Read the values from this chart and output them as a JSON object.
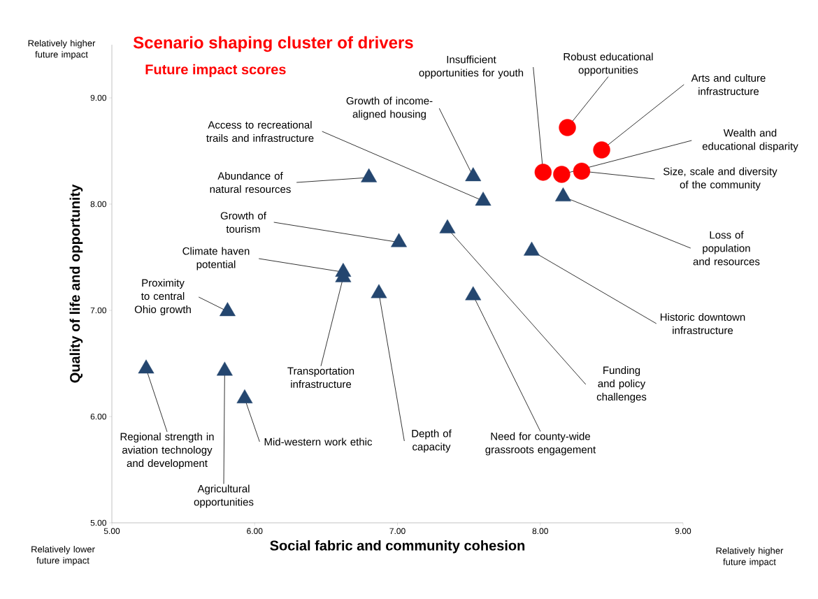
{
  "chart_data": {
    "type": "scatter",
    "title": "Scenario shaping cluster of drivers",
    "subtitle": "Future impact scores",
    "xlabel": "Social fabric and community cohesion",
    "ylabel": "Quality of life and opportunity",
    "xlim": [
      5,
      9
    ],
    "ylim": [
      5,
      9.5
    ],
    "xticks": [
      {
        "value": 5,
        "label": "5.00"
      },
      {
        "value": 6,
        "label": "6.00"
      },
      {
        "value": 7,
        "label": "7.00"
      },
      {
        "value": 8,
        "label": "8.00"
      },
      {
        "value": 9,
        "label": "9.00"
      }
    ],
    "yticks": [
      {
        "value": 5,
        "label": "5.00"
      },
      {
        "value": 6,
        "label": "6.00"
      },
      {
        "value": 7,
        "label": "7.00"
      },
      {
        "value": 8,
        "label": "8.00"
      },
      {
        "value": 9,
        "label": "9.00"
      }
    ],
    "series": [
      {
        "color": "#ff0000",
        "marker": "circle",
        "x": [
          8.19,
          8.43,
          8.02,
          8.15,
          8.29
        ],
        "values": [
          8.72,
          8.51,
          8.3,
          8.28,
          8.31
        ]
      },
      {
        "color": "#24466f",
        "marker": "triangle",
        "x": [
          7.53,
          7.6,
          6.8,
          8.16,
          7.01,
          7.35,
          7.94,
          6.62,
          6.62,
          6.87,
          7.53,
          5.81,
          5.24,
          5.79,
          5.93
        ],
        "values": [
          8.26,
          8.03,
          8.25,
          8.07,
          7.64,
          7.77,
          7.56,
          7.36,
          7.31,
          7.16,
          7.14,
          6.99,
          6.45,
          6.43,
          6.17
        ]
      }
    ],
    "annotations": [
      {
        "text": "Robust educational opportunities",
        "x": 8.19,
        "y": 8.72
      },
      {
        "text": "Arts and culture infrastructure",
        "x": 8.43,
        "y": 8.51
      },
      {
        "text": "Insufficient opportunities for youth",
        "x": 8.02,
        "y": 8.3
      },
      {
        "text": "Wealth and educational disparity",
        "x": 8.15,
        "y": 8.28
      },
      {
        "text": "Size, scale and diversity of the community",
        "x": 8.29,
        "y": 8.31
      },
      {
        "text": "Growth of income-aligned housing",
        "x": 7.53,
        "y": 8.26
      },
      {
        "text": "Access to recreational trails and infrastructure",
        "x": 7.6,
        "y": 8.03
      },
      {
        "text": "Abundance of natural resources",
        "x": 6.8,
        "y": 8.25
      },
      {
        "text": "Loss of population and resources",
        "x": 8.16,
        "y": 8.07
      },
      {
        "text": "Growth of tourism",
        "x": 7.01,
        "y": 7.64
      },
      {
        "text": "Funding and policy challenges",
        "x": 7.35,
        "y": 7.77
      },
      {
        "text": "Historic downtown infrastructure",
        "x": 7.94,
        "y": 7.56
      },
      {
        "text": "Climate haven potential",
        "x": 6.62,
        "y": 7.36
      },
      {
        "text": "Transportation infrastructure",
        "x": 6.62,
        "y": 7.31
      },
      {
        "text": "Depth of capacity",
        "x": 6.87,
        "y": 7.16
      },
      {
        "text": "Need for county-wide grassroots engagement",
        "x": 7.53,
        "y": 7.14
      },
      {
        "text": "Proximity to central Ohio growth",
        "x": 5.81,
        "y": 6.99
      },
      {
        "text": "Regional strength in aviation technology and development",
        "x": 5.24,
        "y": 6.45
      },
      {
        "text": "Agricultural opportunities",
        "x": 5.79,
        "y": 6.43
      },
      {
        "text": "Mid-western work ethic",
        "x": 5.93,
        "y": 6.17
      },
      "Relatively higher future impact",
      "Relatively lower future impact",
      "Relatively higher future impact"
    ]
  }
}
